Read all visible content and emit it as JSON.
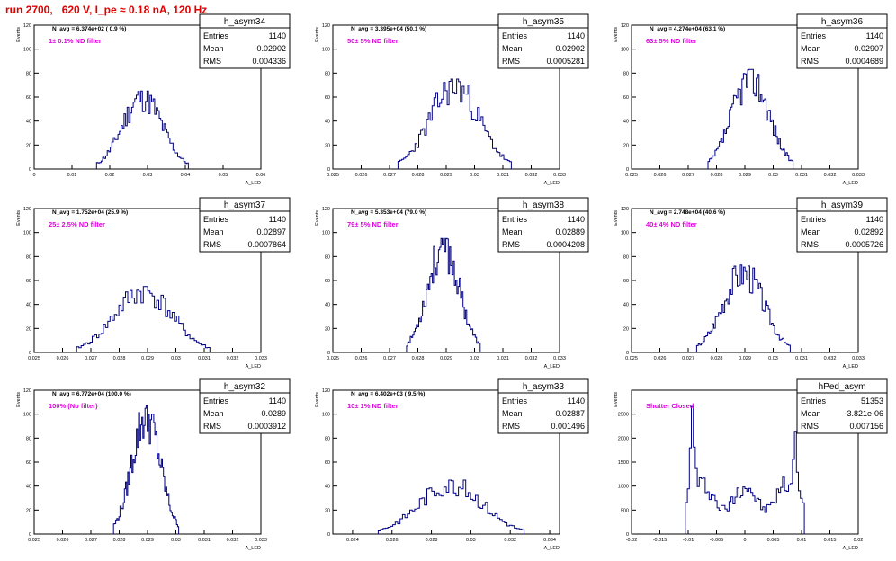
{
  "page_title": "run 2700,   620 V, I_pe ≈ 0.18 nA, 120 Hz",
  "stats_labels": {
    "entries": "Entries",
    "mean": "Mean",
    "rms": "RMS"
  },
  "colors": {
    "histogram": "#000080",
    "title": "#e00000",
    "filter_label": "#e000e0",
    "frame": "#000000"
  },
  "chart_data": [
    {
      "type": "bar",
      "name": "h_asym34",
      "navg": "N_avg = 6.374e+02 ( 0.9 %)",
      "filter": "1± 0.1% ND filter",
      "stats": {
        "entries": "1140",
        "mean": "0.02902",
        "rms": "0.004336"
      },
      "ylabel": "Events",
      "xlabel": "A_LED",
      "xlim": [
        0,
        0.06
      ],
      "ylim": [
        0,
        120
      ],
      "xticks": [
        0,
        0.01,
        0.02,
        0.03,
        0.04,
        0.05,
        0.06
      ],
      "xtick_labels": [
        "0",
        "0.01",
        "0.02",
        "0.03",
        "0.04",
        "0.05",
        "0.06"
      ],
      "yticks": [
        0,
        20,
        40,
        60,
        80,
        100,
        120
      ],
      "xmin": 0.0165,
      "xmax": 0.0408,
      "peak": 65,
      "noise_seed": 11
    },
    {
      "type": "bar",
      "name": "h_asym35",
      "navg": "N_avg = 3.395e+04 (50.1 %)",
      "filter": "50± 5% ND filter",
      "stats": {
        "entries": "1140",
        "mean": "0.02902",
        "rms": "0.0005281"
      },
      "ylabel": "Events",
      "xlabel": "A_LED",
      "xlim": [
        0.025,
        0.033
      ],
      "ylim": [
        0,
        120
      ],
      "xticks": [
        0.025,
        0.026,
        0.027,
        0.028,
        0.029,
        0.03,
        0.031,
        0.032,
        0.033
      ],
      "xtick_labels": [
        "0.025",
        "0.026",
        "0.027",
        "0.028",
        "0.029",
        "0.03",
        "0.031",
        "0.032",
        "0.033"
      ],
      "yticks": [
        0,
        20,
        40,
        60,
        80,
        100,
        120
      ],
      "xmin": 0.0273,
      "xmax": 0.0313,
      "peak": 75,
      "noise_seed": 23
    },
    {
      "type": "bar",
      "name": "h_asym36",
      "navg": "N_avg = 4.274e+04 (63.1 %)",
      "filter": "63± 5% ND filter",
      "stats": {
        "entries": "1140",
        "mean": "0.02907",
        "rms": "0.0004689"
      },
      "ylabel": "Events",
      "xlabel": "A_LED",
      "xlim": [
        0.025,
        0.033
      ],
      "ylim": [
        0,
        120
      ],
      "xticks": [
        0.025,
        0.026,
        0.027,
        0.028,
        0.029,
        0.03,
        0.031,
        0.032,
        0.033
      ],
      "xtick_labels": [
        "0.025",
        "0.026",
        "0.027",
        "0.028",
        "0.029",
        "0.03",
        "0.031",
        "0.032",
        "0.033"
      ],
      "yticks": [
        0,
        20,
        40,
        60,
        80,
        100,
        120
      ],
      "xmin": 0.0277,
      "xmax": 0.0307,
      "peak": 83,
      "noise_seed": 37
    },
    {
      "type": "bar",
      "name": "h_asym37",
      "navg": "N_avg = 1.752e+04 (25.9 %)",
      "filter": "25± 2.5% ND filter",
      "stats": {
        "entries": "1140",
        "mean": "0.02897",
        "rms": "0.0007864"
      },
      "ylabel": "Events",
      "xlabel": "A_LED",
      "xlim": [
        0.025,
        0.033
      ],
      "ylim": [
        0,
        120
      ],
      "xticks": [
        0.025,
        0.026,
        0.027,
        0.028,
        0.029,
        0.03,
        0.031,
        0.032,
        0.033
      ],
      "xtick_labels": [
        "0.025",
        "0.026",
        "0.027",
        "0.028",
        "0.029",
        "0.03",
        "0.031",
        "0.032",
        "0.033"
      ],
      "yticks": [
        0,
        20,
        40,
        60,
        80,
        100,
        120
      ],
      "xmin": 0.0265,
      "xmax": 0.0312,
      "peak": 55,
      "noise_seed": 41
    },
    {
      "type": "bar",
      "name": "h_asym38",
      "navg": "N_avg = 5.353e+04 (79.0 %)",
      "filter": "79± 5% ND filter",
      "stats": {
        "entries": "1140",
        "mean": "0.02889",
        "rms": "0.0004208"
      },
      "ylabel": "Events",
      "xlabel": "A_LED",
      "xlim": [
        0.025,
        0.033
      ],
      "ylim": [
        0,
        120
      ],
      "xticks": [
        0.025,
        0.026,
        0.027,
        0.028,
        0.029,
        0.03,
        0.031,
        0.032,
        0.033
      ],
      "xtick_labels": [
        "0.025",
        "0.026",
        "0.027",
        "0.028",
        "0.029",
        "0.03",
        "0.031",
        "0.032",
        "0.033"
      ],
      "yticks": [
        0,
        20,
        40,
        60,
        80,
        100,
        120
      ],
      "xmin": 0.0276,
      "xmax": 0.0302,
      "peak": 95,
      "noise_seed": 53
    },
    {
      "type": "bar",
      "name": "h_asym39",
      "navg": "N_avg = 2.748e+04 (40.6 %)",
      "filter": "40± 4% ND filter",
      "stats": {
        "entries": "1140",
        "mean": "0.02892",
        "rms": "0.0005726"
      },
      "ylabel": "Events",
      "xlabel": "A_LED",
      "xlim": [
        0.025,
        0.033
      ],
      "ylim": [
        0,
        120
      ],
      "xticks": [
        0.025,
        0.026,
        0.027,
        0.028,
        0.029,
        0.03,
        0.031,
        0.032,
        0.033
      ],
      "xtick_labels": [
        "0.025",
        "0.026",
        "0.027",
        "0.028",
        "0.029",
        "0.03",
        "0.031",
        "0.032",
        "0.033"
      ],
      "yticks": [
        0,
        20,
        40,
        60,
        80,
        100,
        120
      ],
      "xmin": 0.0273,
      "xmax": 0.0306,
      "peak": 73,
      "noise_seed": 67
    },
    {
      "type": "bar",
      "name": "h_asym32",
      "navg": "N_avg = 6.772e+04 (100.0 %)",
      "filter": "100% (No filter)",
      "stats": {
        "entries": "1140",
        "mean": "0.0289",
        "rms": "0.0003912"
      },
      "ylabel": "Events",
      "xlabel": "A_LED",
      "xlim": [
        0.025,
        0.033
      ],
      "ylim": [
        0,
        120
      ],
      "xticks": [
        0.025,
        0.026,
        0.027,
        0.028,
        0.029,
        0.03,
        0.031,
        0.032,
        0.033
      ],
      "xtick_labels": [
        "0.025",
        "0.026",
        "0.027",
        "0.028",
        "0.029",
        "0.03",
        "0.031",
        "0.032",
        "0.033"
      ],
      "yticks": [
        0,
        20,
        40,
        60,
        80,
        100,
        120
      ],
      "xmin": 0.0278,
      "xmax": 0.0301,
      "peak": 107,
      "noise_seed": 79
    },
    {
      "type": "bar",
      "name": "h_asym33",
      "navg": "N_avg = 6.402e+03 ( 9.5 %)",
      "filter": "10± 1% ND filter",
      "stats": {
        "entries": "1140",
        "mean": "0.02887",
        "rms": "0.001496"
      },
      "ylabel": "Events",
      "xlabel": "A_LED",
      "xlim": [
        0.023,
        0.0345
      ],
      "ylim": [
        0,
        120
      ],
      "xticks": [
        0.024,
        0.026,
        0.028,
        0.03,
        0.032,
        0.034
      ],
      "xtick_labels": [
        "0.024",
        "0.026",
        "0.028",
        "0.03",
        "0.032",
        "0.034"
      ],
      "yticks": [
        0,
        20,
        40,
        60,
        80,
        100,
        120
      ],
      "xmin": 0.0253,
      "xmax": 0.0327,
      "peak": 45,
      "noise_seed": 83
    },
    {
      "type": "bar",
      "name": "hPed_asym",
      "navg": "",
      "filter": "Shutter Closed",
      "stats": {
        "entries": "51353",
        "mean": "-3.821e-06",
        "rms": "0.007156"
      },
      "ylabel": "Events",
      "xlabel": "A_LED",
      "xlim": [
        -0.02,
        0.02
      ],
      "ylim": [
        0,
        3000
      ],
      "xticks": [
        -0.02,
        -0.015,
        -0.01,
        -0.005,
        0,
        0.005,
        0.01,
        0.015,
        0.02
      ],
      "xtick_labels": [
        "-0.02",
        "-0.015",
        "-0.01",
        "-0.005",
        "0",
        "0.005",
        "0.01",
        "0.015",
        "0.02"
      ],
      "yticks": [
        0,
        500,
        1000,
        1500,
        2000,
        2500
      ],
      "ytick_labels": [
        "0",
        "500",
        "1000",
        "1500",
        "2000",
        "2500"
      ],
      "xmin": -0.0105,
      "xmax": 0.0105,
      "peak": 2800,
      "noise_seed": 97,
      "shape": "pedestal"
    }
  ]
}
